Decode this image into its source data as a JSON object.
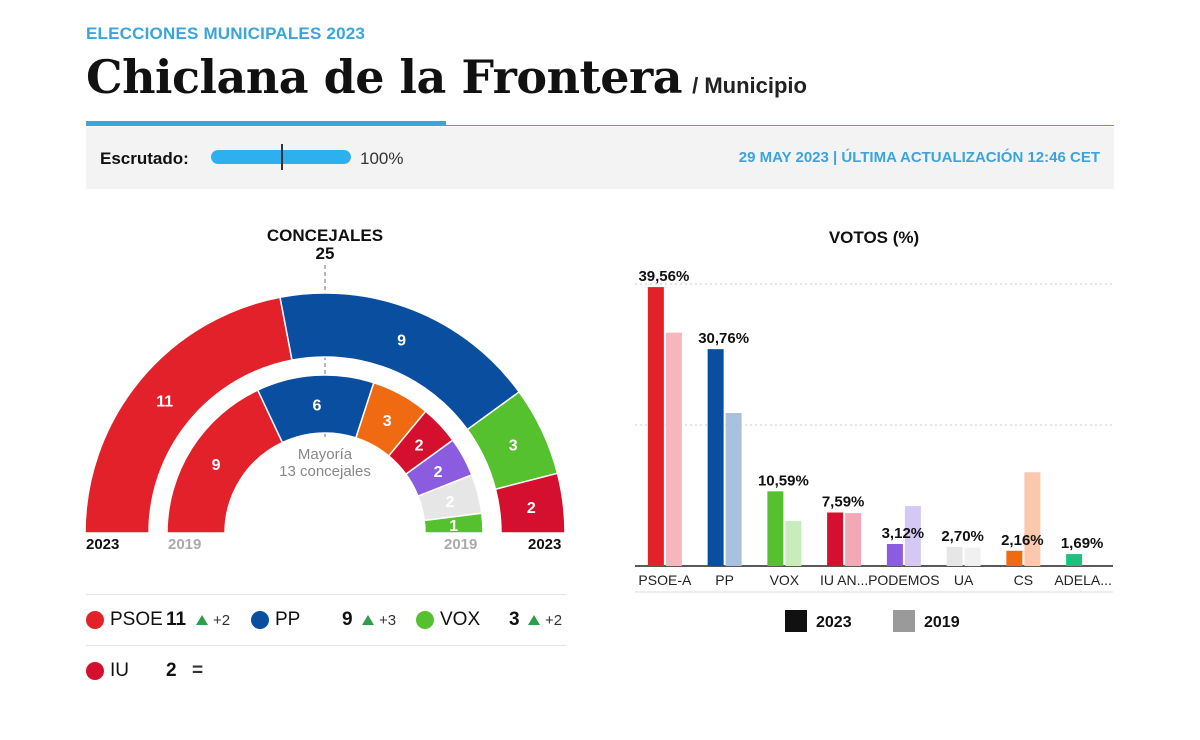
{
  "header": {
    "kicker": "ELECCIONES MUNICIPALES 2023",
    "title": "Chiclana de la Frontera",
    "subtitle": "/ Municipio"
  },
  "scrutiny": {
    "label": "Escrutado:",
    "value_text": "100%",
    "fraction": 1.0,
    "date": "29 MAY 2023 | ÚLTIMA ACTUALIZACIÓN 12:46 CET"
  },
  "chart_data": [
    {
      "type": "pie",
      "subtype": "parliament-semicircle",
      "title": "CONCEJALES",
      "total": "25",
      "majority_label_1": "Mayoría",
      "majority_label_2": "13 concejales",
      "outer_year": "2023",
      "inner_year": "2019",
      "outer": [
        {
          "party": "PSOE",
          "seats": 11,
          "color": "#e3212b"
        },
        {
          "party": "PP",
          "seats": 9,
          "color": "#0a4ea0"
        },
        {
          "party": "VOX",
          "seats": 3,
          "color": "#56c12f"
        },
        {
          "party": "IU",
          "seats": 2,
          "color": "#d5102e"
        }
      ],
      "inner": [
        {
          "party": "PSOE",
          "seats": 9,
          "color": "#e3212b"
        },
        {
          "party": "PP",
          "seats": 6,
          "color": "#0a4ea0"
        },
        {
          "party": "CS",
          "seats": 3,
          "color": "#f06a12"
        },
        {
          "party": "IU",
          "seats": 2,
          "color": "#d5102e"
        },
        {
          "party": "PODEMOS",
          "seats": 2,
          "color": "#8c5ce0"
        },
        {
          "party": "UA",
          "seats": 2,
          "color": "#e6e6e6"
        },
        {
          "party": "VOX",
          "seats": 1,
          "color": "#56c12f"
        }
      ]
    },
    {
      "type": "bar",
      "title": "VOTOS (%)",
      "categories": [
        "PSOE-A",
        "PP",
        "VOX",
        "IU AN...",
        "PODEMOS",
        "UA",
        "CS",
        "ADELA..."
      ],
      "series": [
        {
          "name": "2023",
          "values": [
            39.56,
            30.76,
            10.59,
            7.59,
            3.12,
            2.7,
            2.16,
            1.69
          ]
        },
        {
          "name": "2019",
          "values": [
            33.1,
            21.7,
            6.4,
            7.5,
            8.5,
            2.6,
            13.3,
            0
          ]
        }
      ],
      "labels": [
        "39,56%",
        "30,76%",
        "10,59%",
        "7,59%",
        "3,12%",
        "2,70%",
        "2,16%",
        "1,69%"
      ],
      "colors_2023": [
        "#e3212b",
        "#0a4ea0",
        "#56c12f",
        "#d5102e",
        "#8c5ce0",
        "#e6e6e6",
        "#f06a12",
        "#1fbf7c"
      ],
      "colors_2019": [
        "#f6b6bb",
        "#a9c1de",
        "#c9ecbd",
        "#f1a9b6",
        "#d6c8f4",
        "#f0f0f0",
        "#fbc8ae",
        "#b8ecd6"
      ],
      "legend": [
        {
          "label": "2023",
          "color": "#111111"
        },
        {
          "label": "2019",
          "color": "#9a9a9a"
        }
      ],
      "ylim": [
        0,
        40
      ],
      "grid": true
    }
  ],
  "legend": {
    "rows": [
      [
        {
          "party": "PSOE",
          "seats": "11",
          "change": "+2",
          "color": "#e3212b"
        },
        {
          "party": "PP",
          "seats": "9",
          "change": "+3",
          "color": "#0a4ea0"
        },
        {
          "party": "VOX",
          "seats": "3",
          "change": "+2",
          "color": "#56c12f"
        }
      ],
      [
        {
          "party": "IU",
          "seats": "2",
          "change": "=",
          "color": "#d5102e"
        }
      ]
    ]
  }
}
